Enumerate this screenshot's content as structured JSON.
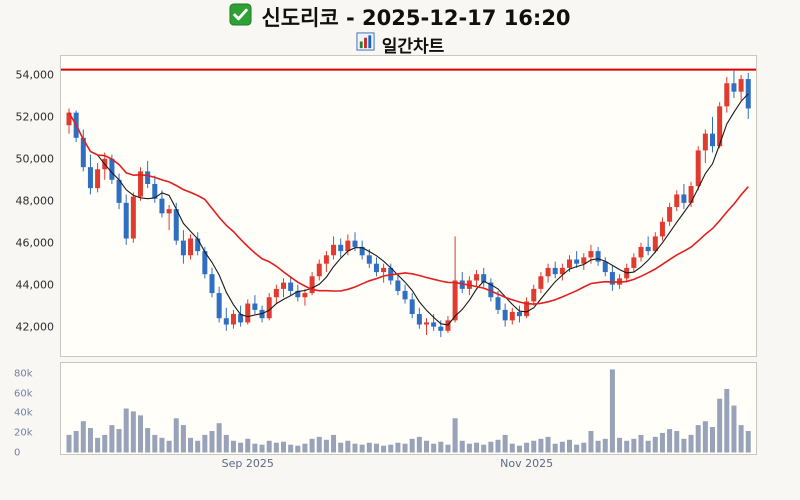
{
  "header": {
    "stock_name": "신도리코",
    "datetime": "2025-12-17 16:20",
    "title": "신도리코 - 2025-12-17 16:20",
    "subtitle": "일간차트",
    "title_icon": "checkmark-icon",
    "subtitle_icon": "bar-chart-icon"
  },
  "chart_data": {
    "type": "candlestick",
    "title": "신도리코 - 2025-12-17 16:20",
    "subtitle": "일간차트",
    "legend": "none",
    "grid": false,
    "colors": {
      "up": "#e13b30",
      "down": "#2f6ec0",
      "volume": "#98a2b8",
      "ma_short": "#1a1a1a",
      "ma_long": "#e02020",
      "highlight": "#dd0000"
    },
    "y_axis": {
      "range": [
        40600,
        54900
      ],
      "ticks": [
        42000,
        44000,
        46000,
        48000,
        50000,
        52000,
        54000
      ],
      "labels": [
        "42,000",
        "44,000",
        "46,000",
        "48,000",
        "50,000",
        "52,000",
        "54,000"
      ]
    },
    "x_ticks": [
      {
        "index": 25,
        "label": "Sep 2025"
      },
      {
        "index": 64,
        "label": "Nov 2025"
      }
    ],
    "highlight_line": {
      "value": 54250
    },
    "moving_averages": [
      {
        "window": 5,
        "color": "#1a1a1a",
        "width": 1.1
      },
      {
        "window": 20,
        "color": "#e02020",
        "width": 1.6
      }
    ],
    "candles": [
      [
        51600,
        52400,
        51200,
        52200
      ],
      [
        52200,
        52300,
        50800,
        51000
      ],
      [
        51000,
        51400,
        49400,
        49600
      ],
      [
        49600,
        50200,
        48300,
        48600
      ],
      [
        48600,
        49800,
        48400,
        49500
      ],
      [
        49500,
        50300,
        49000,
        50000
      ],
      [
        50000,
        50200,
        48800,
        49000
      ],
      [
        49000,
        49300,
        47600,
        47900
      ],
      [
        47900,
        48300,
        45900,
        46200
      ],
      [
        46200,
        48400,
        46000,
        48200
      ],
      [
        48200,
        49600,
        48000,
        49400
      ],
      [
        49400,
        49900,
        48600,
        48800
      ],
      [
        48800,
        49200,
        47900,
        48100
      ],
      [
        48100,
        48500,
        47200,
        47400
      ],
      [
        47400,
        47800,
        46600,
        47600
      ],
      [
        47600,
        47900,
        45900,
        46100
      ],
      [
        46100,
        46600,
        45000,
        45400
      ],
      [
        45400,
        46400,
        45200,
        46200
      ],
      [
        46200,
        46500,
        45400,
        45600
      ],
      [
        45600,
        45800,
        44300,
        44500
      ],
      [
        44500,
        44800,
        43400,
        43600
      ],
      [
        43600,
        43900,
        42200,
        42400
      ],
      [
        42400,
        42900,
        41800,
        42100
      ],
      [
        42100,
        42800,
        41900,
        42600
      ],
      [
        42600,
        43000,
        42000,
        42200
      ],
      [
        42200,
        43300,
        42100,
        43100
      ],
      [
        43100,
        43500,
        42600,
        42800
      ],
      [
        42800,
        43000,
        42200,
        42400
      ],
      [
        42400,
        43600,
        42300,
        43400
      ],
      [
        43400,
        44000,
        43100,
        43800
      ],
      [
        43800,
        44300,
        43400,
        44100
      ],
      [
        44100,
        44400,
        43500,
        43700
      ],
      [
        43700,
        44000,
        43200,
        43400
      ],
      [
        43400,
        43800,
        43000,
        43600
      ],
      [
        43600,
        44600,
        43500,
        44400
      ],
      [
        44400,
        45200,
        44200,
        45000
      ],
      [
        45000,
        45600,
        44600,
        45400
      ],
      [
        45400,
        46300,
        45200,
        45900
      ],
      [
        45900,
        46200,
        45300,
        45600
      ],
      [
        45600,
        46400,
        45400,
        46100
      ],
      [
        46100,
        46500,
        45600,
        45800
      ],
      [
        45800,
        46100,
        45200,
        45400
      ],
      [
        45400,
        45700,
        44800,
        45000
      ],
      [
        45000,
        45300,
        44400,
        44600
      ],
      [
        44600,
        45000,
        44100,
        44800
      ],
      [
        44800,
        45000,
        44000,
        44200
      ],
      [
        44200,
        44500,
        43500,
        43700
      ],
      [
        43700,
        44000,
        43100,
        43300
      ],
      [
        43300,
        43600,
        42400,
        42600
      ],
      [
        42600,
        42900,
        41900,
        42100
      ],
      [
        42100,
        42400,
        41600,
        42200
      ],
      [
        42200,
        42600,
        41800,
        42000
      ],
      [
        42000,
        42300,
        41500,
        41800
      ],
      [
        41800,
        42500,
        41700,
        42300
      ],
      [
        42300,
        46300,
        42200,
        44200
      ],
      [
        44200,
        44600,
        43600,
        43800
      ],
      [
        43800,
        44400,
        43500,
        44200
      ],
      [
        44200,
        44700,
        43900,
        44500
      ],
      [
        44500,
        44800,
        43900,
        44100
      ],
      [
        44100,
        44300,
        43200,
        43400
      ],
      [
        43400,
        43700,
        42600,
        42800
      ],
      [
        42800,
        43100,
        42000,
        42300
      ],
      [
        42300,
        42900,
        42100,
        42700
      ],
      [
        42700,
        43000,
        42200,
        42500
      ],
      [
        42500,
        43400,
        42400,
        43200
      ],
      [
        43200,
        44000,
        43000,
        43800
      ],
      [
        43800,
        44600,
        43600,
        44400
      ],
      [
        44400,
        45000,
        44100,
        44800
      ],
      [
        44800,
        45100,
        44300,
        44500
      ],
      [
        44500,
        45000,
        44200,
        44800
      ],
      [
        44800,
        45400,
        44600,
        45200
      ],
      [
        45200,
        45600,
        44800,
        45000
      ],
      [
        45000,
        45500,
        44700,
        45300
      ],
      [
        45300,
        45900,
        45000,
        45600
      ],
      [
        45600,
        45800,
        44900,
        45100
      ],
      [
        45100,
        45300,
        44400,
        44600
      ],
      [
        44600,
        44900,
        43700,
        44000
      ],
      [
        44000,
        44500,
        43800,
        44300
      ],
      [
        44300,
        45000,
        44100,
        44800
      ],
      [
        44800,
        45500,
        44600,
        45300
      ],
      [
        45300,
        46000,
        45100,
        45800
      ],
      [
        45800,
        46300,
        45400,
        45600
      ],
      [
        45600,
        46500,
        45500,
        46300
      ],
      [
        46300,
        47200,
        46100,
        47000
      ],
      [
        47000,
        47900,
        46800,
        47700
      ],
      [
        47700,
        48500,
        47500,
        48300
      ],
      [
        48300,
        48800,
        47600,
        47900
      ],
      [
        47900,
        48900,
        47700,
        48700
      ],
      [
        48700,
        50600,
        48500,
        50400
      ],
      [
        50400,
        51400,
        49800,
        51200
      ],
      [
        51200,
        52000,
        50300,
        50600
      ],
      [
        50600,
        52700,
        50500,
        52500
      ],
      [
        52500,
        53900,
        52200,
        53600
      ],
      [
        53600,
        54200,
        52900,
        53200
      ],
      [
        53200,
        54000,
        52800,
        53800
      ],
      [
        53800,
        54100,
        51900,
        52400
      ]
    ],
    "volumes": [
      18000,
      22000,
      32000,
      25000,
      15000,
      18000,
      28000,
      24000,
      45000,
      42000,
      38000,
      25000,
      18000,
      15000,
      12000,
      35000,
      28000,
      15000,
      12000,
      18000,
      22000,
      30000,
      18000,
      12000,
      10000,
      14000,
      9000,
      8000,
      12000,
      10000,
      11000,
      8000,
      7000,
      9000,
      14000,
      16000,
      13000,
      18000,
      10000,
      12000,
      9000,
      8000,
      10000,
      9000,
      7000,
      8000,
      10000,
      9000,
      14000,
      16000,
      12000,
      9000,
      11000,
      8000,
      35000,
      12000,
      9000,
      10000,
      8000,
      11000,
      13000,
      18000,
      9000,
      7000,
      10000,
      12000,
      14000,
      16000,
      9000,
      11000,
      13000,
      8000,
      10000,
      22000,
      12000,
      14000,
      85000,
      15000,
      12000,
      14000,
      18000,
      12000,
      16000,
      20000,
      24000,
      22000,
      14000,
      18000,
      28000,
      32000,
      26000,
      55000,
      65000,
      48000,
      28000,
      22000
    ],
    "volume_axis": {
      "max": 90000,
      "ticks": [
        0,
        20000,
        40000,
        60000,
        80000
      ],
      "labels": [
        "0",
        "20k",
        "40k",
        "60k",
        "80k"
      ]
    }
  }
}
